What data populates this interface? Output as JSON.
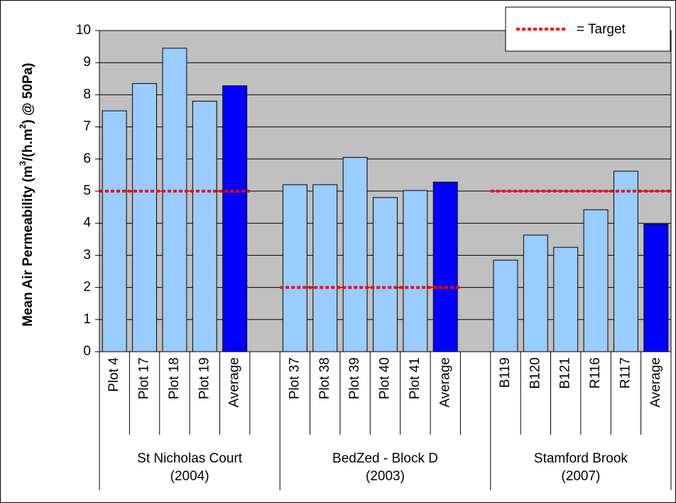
{
  "chart_data": {
    "type": "bar",
    "ylabel": [
      "Mean Air Permeability (m",
      "3",
      "/(h.m",
      "2",
      ") @ 50Pa)"
    ],
    "ylim": [
      0,
      10
    ],
    "yticks": [
      0,
      1,
      2,
      3,
      4,
      5,
      6,
      7,
      8,
      9,
      10
    ],
    "grid": true,
    "legend": {
      "label": "= Target",
      "color": "#ff0000",
      "position": "upper right"
    },
    "groups": [
      {
        "label": [
          "St Nicholas Court",
          "(2004)"
        ],
        "target": 5,
        "categories": [
          "Plot 4",
          "Plot 17",
          "Plot 18",
          "Plot 19",
          "Average"
        ],
        "values": [
          7.5,
          8.35,
          9.45,
          7.8,
          8.28
        ],
        "colors": [
          "#99ccff",
          "#99ccff",
          "#99ccff",
          "#99ccff",
          "#0000ff"
        ]
      },
      {
        "label": [
          "BedZed - Block D",
          "(2003)"
        ],
        "target": 2,
        "categories": [
          "Plot 37",
          "Plot 38",
          "Plot 39",
          "Plot 40",
          "Plot 41",
          "Average"
        ],
        "values": [
          5.2,
          5.2,
          6.05,
          4.8,
          5.02,
          5.28
        ],
        "colors": [
          "#99ccff",
          "#99ccff",
          "#99ccff",
          "#99ccff",
          "#99ccff",
          "#0000ff"
        ]
      },
      {
        "label": [
          "Stamford Brook",
          "(2007)"
        ],
        "target": 5,
        "categories": [
          "B119",
          "B120",
          "B121",
          "R116",
          "R117",
          "Average"
        ],
        "values": [
          2.85,
          3.63,
          3.25,
          4.42,
          5.62,
          3.97
        ],
        "colors": [
          "#99ccff",
          "#99ccff",
          "#99ccff",
          "#99ccff",
          "#99ccff",
          "#0000ff"
        ]
      }
    ]
  }
}
